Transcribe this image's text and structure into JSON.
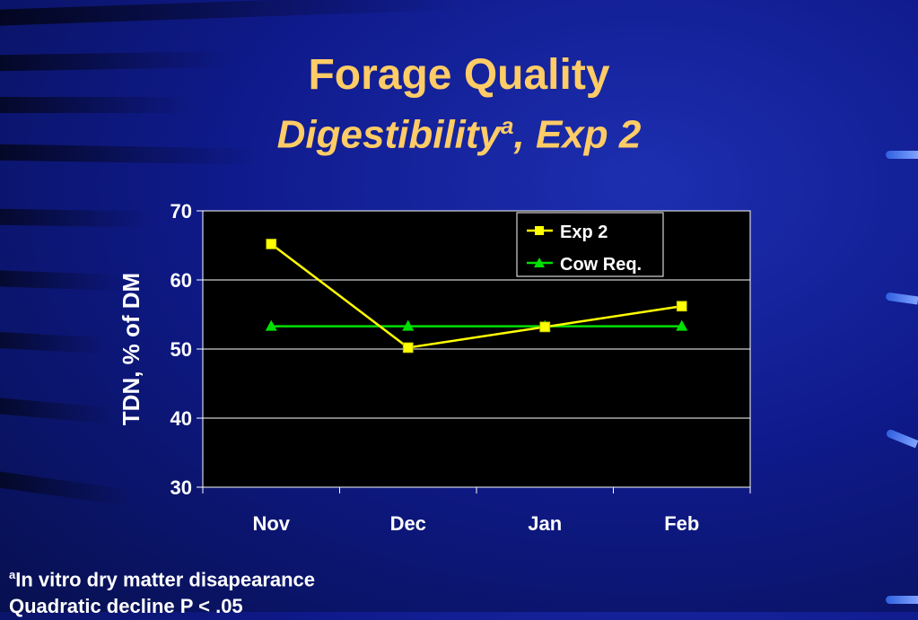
{
  "slide": {
    "title": "Forage Quality",
    "subtitle": "Digestibility",
    "subtitle_sup": "a",
    "subtitle_suffix": ", Exp 2"
  },
  "footnotes": {
    "line1_sup": "a",
    "line1": "In vitro dry matter disapearance",
    "line2": "Quadratic decline P < .05"
  },
  "colors": {
    "title": "#ffcc66",
    "plot_background": "#000000",
    "exp2": "#ffff00",
    "cow_req": "#00e000"
  },
  "chart_data": {
    "type": "line",
    "categories": [
      "Nov",
      "Dec",
      "Jan",
      "Feb"
    ],
    "ylabel": "TDN, % of DM",
    "xlabel": "",
    "ylim": [
      30,
      70
    ],
    "yticks": [
      30,
      40,
      50,
      60,
      70
    ],
    "grid": true,
    "legend_position": "top-right",
    "series": [
      {
        "name": "Exp 2",
        "values": [
          65.2,
          50.2,
          53.2,
          56.2
        ],
        "color": "#ffff00",
        "marker": "square"
      },
      {
        "name": "Cow Req.",
        "values": [
          53.3,
          53.3,
          53.3,
          53.3
        ],
        "color": "#00e000",
        "marker": "triangle"
      }
    ]
  }
}
